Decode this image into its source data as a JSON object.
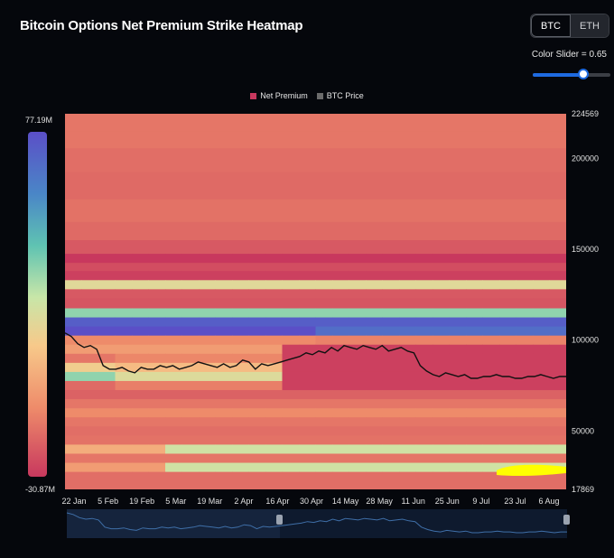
{
  "header": {
    "title": "Bitcoin Options Net Premium Strike Heatmap",
    "assets": [
      {
        "label": "BTC",
        "active": true
      },
      {
        "label": "ETH",
        "active": false
      }
    ],
    "color_slider_label": "Color Slider = 0.65",
    "color_slider_value": 0.65
  },
  "colors": {
    "background": "#05070c",
    "net_premium": "#c8385e",
    "btc_price": "#6b6b6b",
    "price_line": "#111111",
    "highlight": "#ffff00"
  },
  "chart_data": {
    "type": "heatmap",
    "title": "Bitcoin Options Net Premium Strike Heatmap",
    "legend": [
      {
        "name": "Net Premium",
        "color": "#c8385e"
      },
      {
        "name": "BTC Price",
        "color": "#6b6b6b"
      }
    ],
    "legend_placement": "top-center",
    "x_tick_labels": [
      "22 Jan",
      "5 Feb",
      "19 Feb",
      "5 Mar",
      "19 Mar",
      "2 Apr",
      "16 Apr",
      "30 Apr",
      "14 May",
      "28 May",
      "11 Jun",
      "25 Jun",
      "9 Jul",
      "23 Jul",
      "6 Aug"
    ],
    "y_axis": {
      "min": 17869,
      "max": 224569,
      "ticks": [
        17869,
        50000,
        100000,
        150000,
        200000,
        224569
      ],
      "tick_labels": [
        "17869",
        "50000",
        "100000",
        "150000",
        "200000",
        "224569"
      ],
      "position": "right"
    },
    "colorbar": {
      "max_label": "77.19M",
      "min_label": "-30.87M",
      "max": 77.19,
      "min": -30.87,
      "unit": "M"
    },
    "weeks": 30,
    "strike_bands": [
      {
        "strike": 219000,
        "type": "const",
        "value": 0.15
      },
      {
        "strike": 211000,
        "type": "const",
        "value": 0.15
      },
      {
        "strike": 200000,
        "type": "const",
        "value": 0.13
      },
      {
        "strike": 185000,
        "type": "const",
        "value": 0.12
      },
      {
        "strike": 170000,
        "type": "const",
        "value": 0.14
      },
      {
        "strike": 160000,
        "type": "const",
        "value": 0.12
      },
      {
        "strike": 150000,
        "type": "const",
        "value": 0.08
      },
      {
        "strike": 145000,
        "type": "const",
        "value": 0.0
      },
      {
        "strike": 140000,
        "type": "const",
        "value": 0.05
      },
      {
        "strike": 136000,
        "type": "const",
        "value": 0.02
      },
      {
        "strike": 130000,
        "type": "const",
        "value": 0.45
      },
      {
        "strike": 126000,
        "type": "const",
        "value": 0.08
      },
      {
        "strike": 120000,
        "type": "const",
        "value": 0.07
      },
      {
        "strike": 115000,
        "type": "const",
        "value": 0.6
      },
      {
        "strike": 110000,
        "type": "const",
        "value": 0.95
      },
      {
        "strike": 105000,
        "type": "const",
        "value": 1.0
      },
      {
        "strike": 100000,
        "type": "const",
        "value": 0.2
      },
      {
        "strike": 95000,
        "type": "const",
        "value": 0.25
      },
      {
        "strike": 90000,
        "type": "const",
        "value": 0.15
      },
      {
        "strike": 85000,
        "type": "const",
        "value": 0.4
      },
      {
        "strike": 80000,
        "type": "const",
        "value": 0.6
      },
      {
        "strike": 75000,
        "type": "const",
        "value": 0.12
      },
      {
        "strike": 70000,
        "type": "const",
        "value": 0.1
      },
      {
        "strike": 65000,
        "type": "const",
        "value": 0.15
      },
      {
        "strike": 60000,
        "type": "const",
        "value": 0.2
      },
      {
        "strike": 55000,
        "type": "const",
        "value": 0.15
      },
      {
        "strike": 50000,
        "type": "const",
        "value": 0.13
      },
      {
        "strike": 45000,
        "type": "const",
        "value": 0.14
      },
      {
        "strike": 40000,
        "type": "const",
        "value": 0.3
      },
      {
        "strike": 35000,
        "type": "const",
        "value": 0.15
      },
      {
        "strike": 30000,
        "type": "const",
        "value": 0.25
      },
      {
        "strike": 25000,
        "type": "const",
        "value": 0.13
      }
    ],
    "btc_price_series": [
      104000,
      102000,
      98000,
      96000,
      97000,
      95000,
      86000,
      84000,
      84000,
      85000,
      83000,
      82000,
      85000,
      84000,
      84000,
      86000,
      85000,
      86000,
      84000,
      85000,
      86000,
      88000,
      87000,
      86000,
      85000,
      87000,
      85000,
      86000,
      89000,
      88000,
      84000,
      87000,
      86000,
      87000,
      88000,
      89000,
      90000,
      91000,
      93000,
      92000,
      94000,
      93000,
      96000,
      94000,
      97000,
      96000,
      95000,
      97000,
      96000,
      95000,
      97000,
      94000,
      95000,
      96000,
      94000,
      93000,
      86000,
      83000,
      81000,
      80000,
      82000,
      81000,
      80000,
      81000,
      79000,
      79000,
      80000,
      80000,
      81000,
      80000,
      80000,
      79000,
      79000,
      80000,
      80000,
      81000,
      80000,
      79000,
      80000,
      80000
    ]
  }
}
